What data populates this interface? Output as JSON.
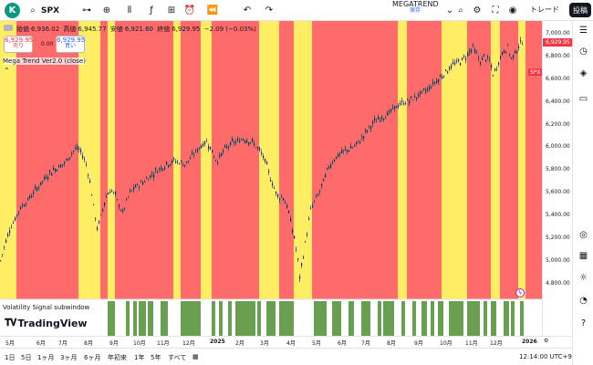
{
  "topbar": {
    "avatar_letter": "K",
    "symbol": "SPX",
    "layout_name": "MEGATREND",
    "layout_status": "保存",
    "trade_label": "トレード",
    "post_label": "投稿"
  },
  "ohlc": {
    "open_label": "始値",
    "open": "6,936.02",
    "high_label": "高値",
    "high": "6,945.77",
    "low_label": "安値",
    "low": "6,921.60",
    "close_label": "終値",
    "close": "6,929.95",
    "change": "−2.09 (−0.03%)"
  },
  "trade": {
    "sell_price": "6,929.95",
    "sell_label": "売り",
    "spread": "0.00",
    "buy_price": "6,929.95",
    "buy_label": "買い"
  },
  "indicator_label": "Mega Trend Ver2.0 (close)",
  "subwindow_label": "Volatility Signal subwindow",
  "logo_text": "TradingView",
  "chart_data": {
    "type": "candlestick",
    "symbol": "SPX",
    "y_ticks": [
      "7,000.00",
      "6,800.00",
      "6,600.00",
      "6,400.00",
      "6,200.00",
      "6,000.00",
      "5,800.00",
      "5,600.00",
      "5,400.00",
      "5,200.00",
      "5,000.00",
      "4,800.00"
    ],
    "ylim": [
      4700,
      7050
    ],
    "last_price_tag": "6,929.95",
    "x_ticks": [
      "5月",
      "6月",
      "7月",
      "8月",
      "9月",
      "10月",
      "11月",
      "12月",
      "2025",
      "2月",
      "3月",
      "4月",
      "5月",
      "6月",
      "7月",
      "8月",
      "9月",
      "10月",
      "11月",
      "12月",
      "2026"
    ],
    "close_path": [
      [
        0,
        5000
      ],
      [
        5,
        5150
      ],
      [
        10,
        5280
      ],
      [
        15,
        5350
      ],
      [
        20,
        5440
      ],
      [
        25,
        5500
      ],
      [
        30,
        5530
      ],
      [
        34,
        5580
      ],
      [
        38,
        5620
      ],
      [
        42,
        5660
      ],
      [
        46,
        5700
      ],
      [
        50,
        5740
      ],
      [
        55,
        5780
      ],
      [
        58,
        5800
      ],
      [
        62,
        5820
      ],
      [
        66,
        5840
      ],
      [
        70,
        5860
      ],
      [
        74,
        5900
      ],
      [
        78,
        5950
      ],
      [
        82,
        5990
      ],
      [
        86,
        5980
      ],
      [
        90,
        5930
      ],
      [
        94,
        5850
      ],
      [
        98,
        5700
      ],
      [
        102,
        5480
      ],
      [
        106,
        5280
      ],
      [
        110,
        5390
      ],
      [
        114,
        5520
      ],
      [
        118,
        5600
      ],
      [
        122,
        5620
      ],
      [
        126,
        5570
      ],
      [
        130,
        5490
      ],
      [
        134,
        5420
      ],
      [
        138,
        5520
      ],
      [
        142,
        5600
      ],
      [
        148,
        5650
      ],
      [
        154,
        5680
      ],
      [
        160,
        5720
      ],
      [
        166,
        5760
      ],
      [
        172,
        5800
      ],
      [
        178,
        5830
      ],
      [
        184,
        5860
      ],
      [
        190,
        5880
      ],
      [
        196,
        5870
      ],
      [
        202,
        5850
      ],
      [
        208,
        5900
      ],
      [
        214,
        5960
      ],
      [
        220,
        6020
      ],
      [
        226,
        6050
      ],
      [
        230,
        6000
      ],
      [
        234,
        5920
      ],
      [
        238,
        5880
      ],
      [
        242,
        5940
      ],
      [
        248,
        6000
      ],
      [
        254,
        6040
      ],
      [
        260,
        6050
      ],
      [
        266,
        6080
      ],
      [
        272,
        6060
      ],
      [
        278,
        6030
      ],
      [
        284,
        5970
      ],
      [
        290,
        5880
      ],
      [
        294,
        5780
      ],
      [
        298,
        5680
      ],
      [
        302,
        5600
      ],
      [
        306,
        5560
      ],
      [
        310,
        5560
      ],
      [
        314,
        5480
      ],
      [
        318,
        5350
      ],
      [
        322,
        5200
      ],
      [
        326,
        5000
      ],
      [
        328,
        4850
      ],
      [
        332,
        5050
      ],
      [
        336,
        5250
      ],
      [
        340,
        5450
      ],
      [
        344,
        5520
      ],
      [
        348,
        5580
      ],
      [
        352,
        5650
      ],
      [
        356,
        5750
      ],
      [
        360,
        5830
      ],
      [
        366,
        5900
      ],
      [
        372,
        5940
      ],
      [
        378,
        5970
      ],
      [
        384,
        5990
      ],
      [
        390,
        6020
      ],
      [
        396,
        6080
      ],
      [
        402,
        6150
      ],
      [
        408,
        6210
      ],
      [
        414,
        6250
      ],
      [
        420,
        6270
      ],
      [
        426,
        6300
      ],
      [
        432,
        6350
      ],
      [
        438,
        6380
      ],
      [
        444,
        6400
      ],
      [
        450,
        6420
      ],
      [
        456,
        6450
      ],
      [
        462,
        6480
      ],
      [
        468,
        6510
      ],
      [
        474,
        6560
      ],
      [
        480,
        6600
      ],
      [
        486,
        6650
      ],
      [
        492,
        6700
      ],
      [
        498,
        6740
      ],
      [
        504,
        6760
      ],
      [
        510,
        6800
      ],
      [
        514,
        6850
      ],
      [
        518,
        6880
      ],
      [
        522,
        6820
      ],
      [
        526,
        6750
      ],
      [
        530,
        6800
      ],
      [
        536,
        6760
      ],
      [
        540,
        6640
      ],
      [
        544,
        6700
      ],
      [
        548,
        6800
      ],
      [
        552,
        6850
      ],
      [
        556,
        6880
      ],
      [
        560,
        6780
      ],
      [
        564,
        6830
      ],
      [
        568,
        6900
      ],
      [
        572,
        6930
      ]
    ]
  },
  "time_axis": [
    "5月",
    "6月",
    "7月",
    "8月",
    "9月",
    "10月",
    "11月",
    "12月",
    "2025",
    "2月",
    "3月",
    "4月",
    "5月",
    "6月",
    "7月",
    "8月",
    "9月",
    "10月",
    "11月",
    "12月",
    "2026"
  ],
  "ranges": [
    "1日",
    "5日",
    "1ヶ月",
    "3ヶ月",
    "6ヶ月",
    "年初来",
    "1年",
    "5年",
    "すべて"
  ],
  "timezone": "12:14:00 UTC+9",
  "colors": {
    "red": "#ff6b6b",
    "yellow": "#ffee63",
    "green": "#689f50",
    "candle": "#1e2430"
  }
}
